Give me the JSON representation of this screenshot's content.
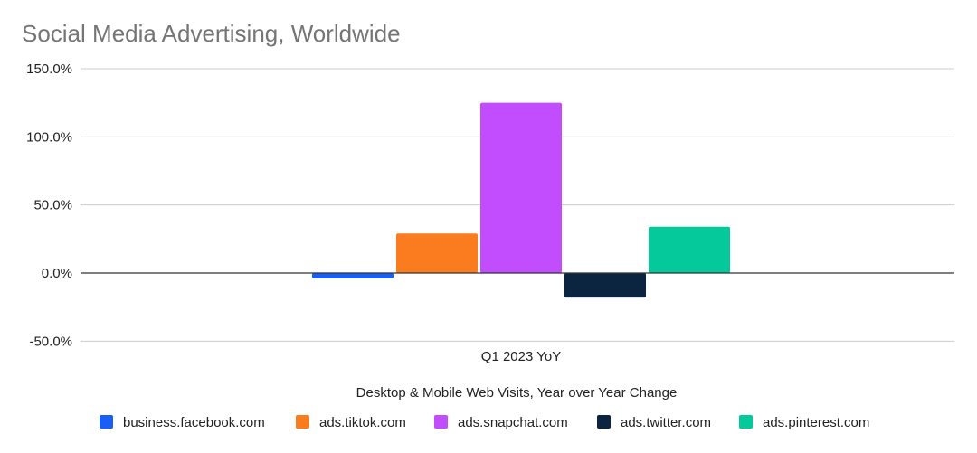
{
  "chart_data": {
    "type": "bar",
    "title": "Social Media Advertising, Worldwide",
    "xlabel": "Desktop & Mobile Web Visits, Year over Year Change",
    "ylabel": "",
    "categories": [
      "Q1 2023 YoY"
    ],
    "ylim": [
      -50,
      150
    ],
    "yticks": [
      150,
      100,
      50,
      0,
      -50
    ],
    "ytick_labels": [
      "150.0%",
      "100.0%",
      "50.0%",
      "0.0%",
      "-50.0%"
    ],
    "grid": true,
    "legend": "bottom",
    "series": [
      {
        "name": "business.facebook.com",
        "color": "#1a5ff5",
        "values": [
          -4
        ]
      },
      {
        "name": "ads.tiktok.com",
        "color": "#fb7c1e",
        "values": [
          29
        ]
      },
      {
        "name": "ads.snapchat.com",
        "color": "#c24dff",
        "values": [
          125
        ]
      },
      {
        "name": "ads.twitter.com",
        "color": "#0b2540",
        "values": [
          -18
        ]
      },
      {
        "name": "ads.pinterest.com",
        "color": "#05c99a",
        "values": [
          34
        ]
      }
    ]
  }
}
